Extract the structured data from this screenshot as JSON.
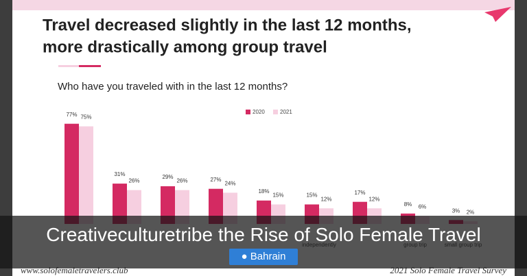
{
  "chart_data": {
    "type": "bar",
    "title": "Travel decreased slightly in the last 12 months,",
    "title_line2": "more drastically among group travel",
    "subtitle": "Who have you traveled with in the last 12 months?",
    "categories": [
      null,
      null,
      null,
      null,
      null,
      "independently",
      null,
      "group trip",
      "small group trip"
    ],
    "series": [
      {
        "name": "2020",
        "color": "#d42a62",
        "values": [
          77,
          31,
          29,
          27,
          18,
          15,
          17,
          8,
          3
        ],
        "value_labels": [
          "77%",
          "31%",
          "29%",
          "27%",
          "18%",
          "15%",
          "17%",
          "8%",
          "3%"
        ]
      },
      {
        "name": "2021",
        "color": "#f6cfe0",
        "values": [
          75,
          26,
          26,
          24,
          15,
          12,
          12,
          6,
          2
        ],
        "value_labels": [
          "75%",
          "26%",
          "26%",
          "24%",
          "15%",
          "12%",
          "12%",
          "6%",
          "2%"
        ]
      }
    ]
  },
  "caption": "Creativeculturetribe the Rise of Solo Female Travel",
  "tag": "Bahrain",
  "footer_left": "www.solofemaletravelers.club",
  "footer_right": "2021 Solo Female Travel Survey"
}
